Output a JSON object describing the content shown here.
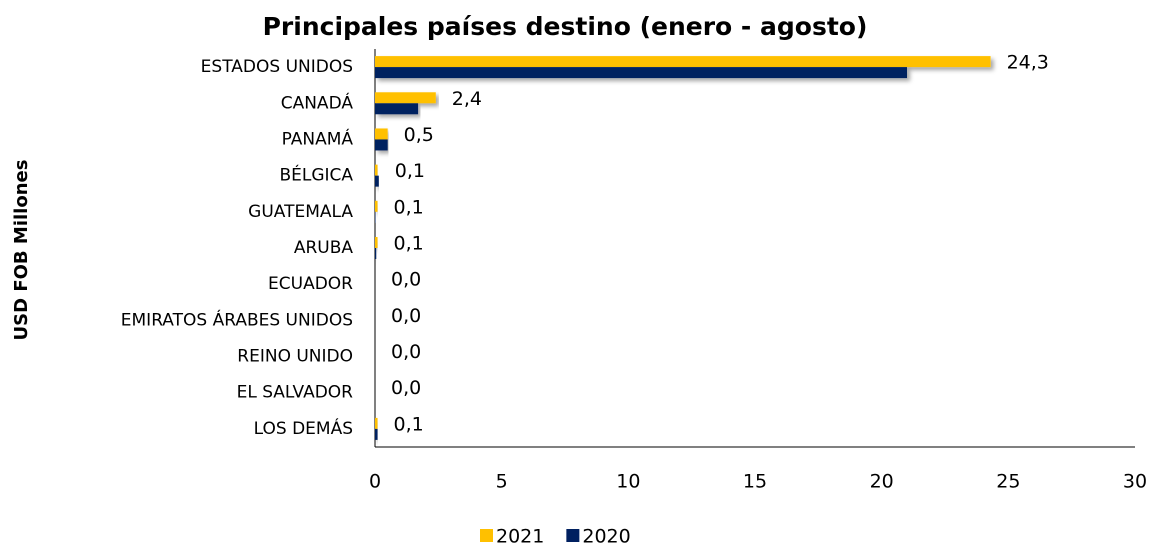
{
  "chart_data": {
    "type": "hbar",
    "title": "Principales países destino (enero - agosto)",
    "y_label": "USD FOB Millones",
    "categories": [
      "ESTADOS UNIDOS",
      "CANADÁ",
      "PANAMÁ",
      "BÉLGICA",
      "GUATEMALA",
      "ARUBA",
      "ECUADOR",
      "EMIRATOS ÁRABES UNIDOS",
      "REINO UNIDO",
      "EL SALVADOR",
      "LOS DEMÁS"
    ],
    "series": [
      {
        "name": "2021",
        "color": "#ffc000",
        "values": [
          24.3,
          2.4,
          0.5,
          0.1,
          0.1,
          0.1,
          0.0,
          0.0,
          0.0,
          0.0,
          0.1
        ],
        "value_labels": [
          "24,3",
          "2,4",
          "0,5",
          "0,1",
          "0,1",
          "0,1",
          "0,0",
          "0,0",
          "0,0",
          "0,0",
          "0,1"
        ]
      },
      {
        "name": "2020",
        "color": "#002060",
        "values": [
          21.0,
          1.7,
          0.5,
          0.15,
          0.02,
          0.05,
          0.0,
          0.0,
          0.0,
          0.0,
          0.1
        ]
      }
    ],
    "xlim": [
      0,
      30
    ],
    "xticks": [
      0,
      5,
      10,
      15,
      20,
      25,
      30
    ],
    "grid": false,
    "legend": "bottom"
  }
}
